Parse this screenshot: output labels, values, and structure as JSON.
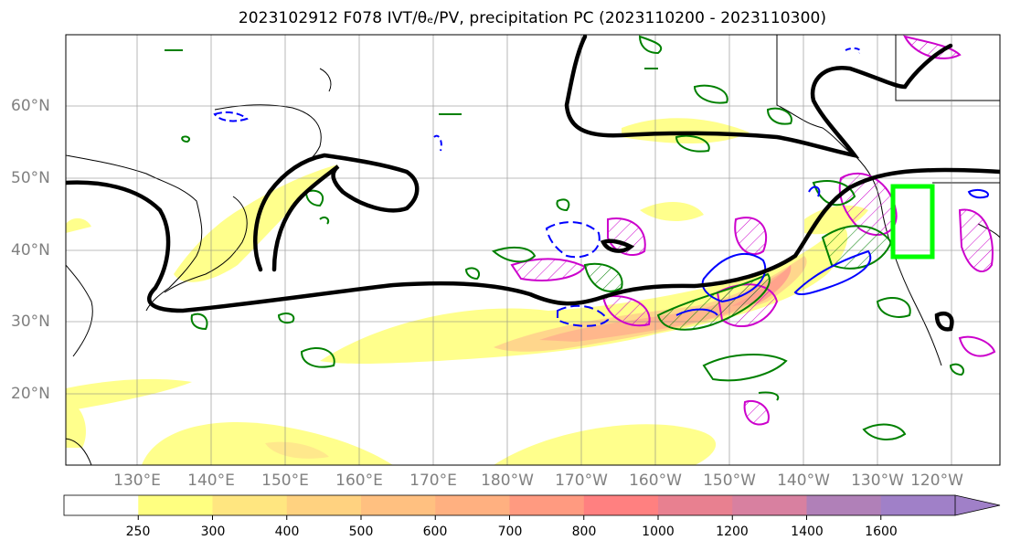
{
  "title": "2023102912 F078 IVT/θₑ/PV, precipitation PC (2023110200 - 2023110300)",
  "map": {
    "lat_labels": [
      "60°N",
      "50°N",
      "40°N",
      "30°N",
      "20°N"
    ],
    "lon_labels": [
      "130°E",
      "140°E",
      "150°E",
      "160°E",
      "170°E",
      "180°W",
      "170°W",
      "160°W",
      "150°W",
      "140°W",
      "130°W",
      "120°W"
    ],
    "highlight_box_color": "#00ff00",
    "contour_colors": {
      "theta_e": "#000000",
      "pv_positive": "#008000",
      "pv_negative": "#0000ff",
      "precip": "#cc00cc"
    }
  },
  "colorbar": {
    "ticks": [
      "250",
      "300",
      "400",
      "500",
      "600",
      "700",
      "800",
      "1000",
      "1200",
      "1400",
      "1600"
    ],
    "colors": [
      "#ffffff",
      "#ffff80",
      "#ffe680",
      "#ffd280",
      "#ffc080",
      "#ffb080",
      "#ff9a80",
      "#ff8080",
      "#e88090",
      "#d880a0",
      "#b080b8",
      "#a080c8"
    ]
  }
}
